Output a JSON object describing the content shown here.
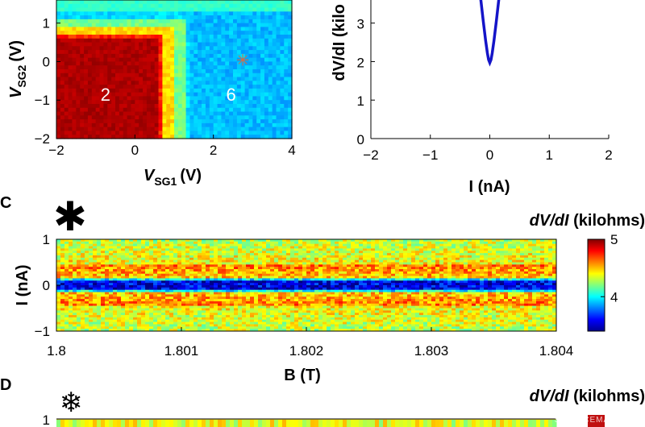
{
  "chart_data": [
    {
      "type": "heatmap",
      "panel": "",
      "xlabel": {
        "main": "V",
        "sub": "SG1",
        "unit": "(V)"
      },
      "ylabel": {
        "main": "V",
        "sub": "SG2",
        "unit": "(V)"
      },
      "xlim": [
        -2,
        4
      ],
      "ylim": [
        -2,
        1.6
      ],
      "xticks": [
        "−2",
        "0",
        "2",
        "4"
      ],
      "yticks": [
        "−2",
        "−1",
        "0",
        "1"
      ],
      "regions": [
        {
          "label": "2",
          "x": -0.75,
          "y": -0.85,
          "level": "high"
        },
        {
          "label": "6",
          "x": 2.45,
          "y": -0.85,
          "level": "low"
        }
      ],
      "marker": {
        "symbol": "✳",
        "x": 2.75,
        "y": 0.0,
        "color": "#e06a3a"
      }
    },
    {
      "type": "line",
      "panel": "",
      "ylabel_visible": "dV/dI (kilo",
      "xlabel": "I (nA)",
      "xlim": [
        -2,
        2
      ],
      "ylim": [
        0,
        3.6
      ],
      "xticks": [
        "−2",
        "−1",
        "0",
        "1",
        "2"
      ],
      "yticks": [
        "0",
        "1",
        "2",
        "3"
      ],
      "series": [
        {
          "x": [
            -0.15,
            -0.11,
            -0.07,
            -0.04,
            -0.02,
            0.0,
            0.02,
            0.04,
            0.07,
            0.11,
            0.15
          ],
          "y": [
            3.6,
            3.05,
            2.55,
            2.22,
            2.05,
            1.97,
            2.05,
            2.22,
            2.55,
            3.05,
            3.6
          ],
          "color": "#1414c8"
        }
      ]
    },
    {
      "type": "heatmap",
      "panel": "C",
      "marker_symbol": "✱",
      "xlabel": "B (T)",
      "ylabel": "I (nA)",
      "xlim": [
        1.8,
        1.804
      ],
      "ylim": [
        -1,
        1
      ],
      "xticks": [
        "1.8",
        "1.801",
        "1.802",
        "1.803",
        "1.804"
      ],
      "yticks": [
        "1",
        "0",
        "−1"
      ],
      "colorbar": {
        "title": "dV/dI (kilohms)",
        "min": 3.4,
        "max": 5.0,
        "ticks": [
          "5",
          "4"
        ]
      }
    },
    {
      "type": "heatmap",
      "panel": "D",
      "marker_symbol": "❄",
      "colorbar_title": "dV/dI (kilohms)",
      "yticks": [
        "1"
      ]
    }
  ],
  "watermark": "SCIENCEMAG.COM"
}
